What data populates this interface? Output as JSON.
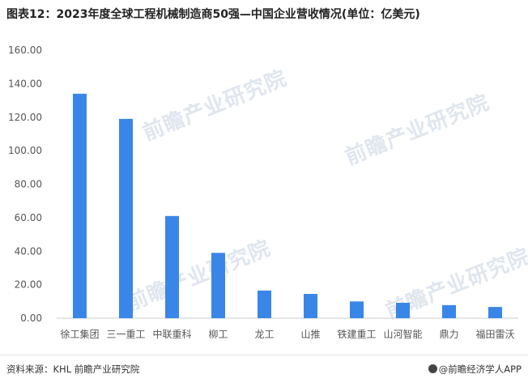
{
  "page": {
    "title": "图表12：2023年度全球工程机械制造商50强—中国企业营收情况(单位：亿美元)",
    "source": "资料来源：KHL 前瞻产业研究院",
    "brand": "@前瞻经济学人APP",
    "watermark": "前瞻产业研究院"
  },
  "colors": {
    "bar": "#3a86e8",
    "axis_text": "#555555",
    "grid": "#eeeeee"
  },
  "chart_data": {
    "type": "bar",
    "title": "图表12：2023年度全球工程机械制造商50强—中国企业营收情况(单位：亿美元)",
    "categories": [
      "徐工集团",
      "三一重工",
      "中联重科",
      "柳工",
      "龙工",
      "山推",
      "铁建重工",
      "山河智能",
      "鼎力",
      "福田雷沃"
    ],
    "values": [
      134,
      119,
      61,
      39,
      16.5,
      14.5,
      10,
      9.2,
      7.8,
      6.7
    ],
    "yticks": [
      "0.00",
      "20.00",
      "40.00",
      "60.00",
      "80.00",
      "100.00",
      "120.00",
      "140.00",
      "160.00"
    ],
    "ylim": [
      0,
      160
    ],
    "xlabel": "",
    "ylabel": "",
    "grid": false,
    "legend": "none"
  }
}
